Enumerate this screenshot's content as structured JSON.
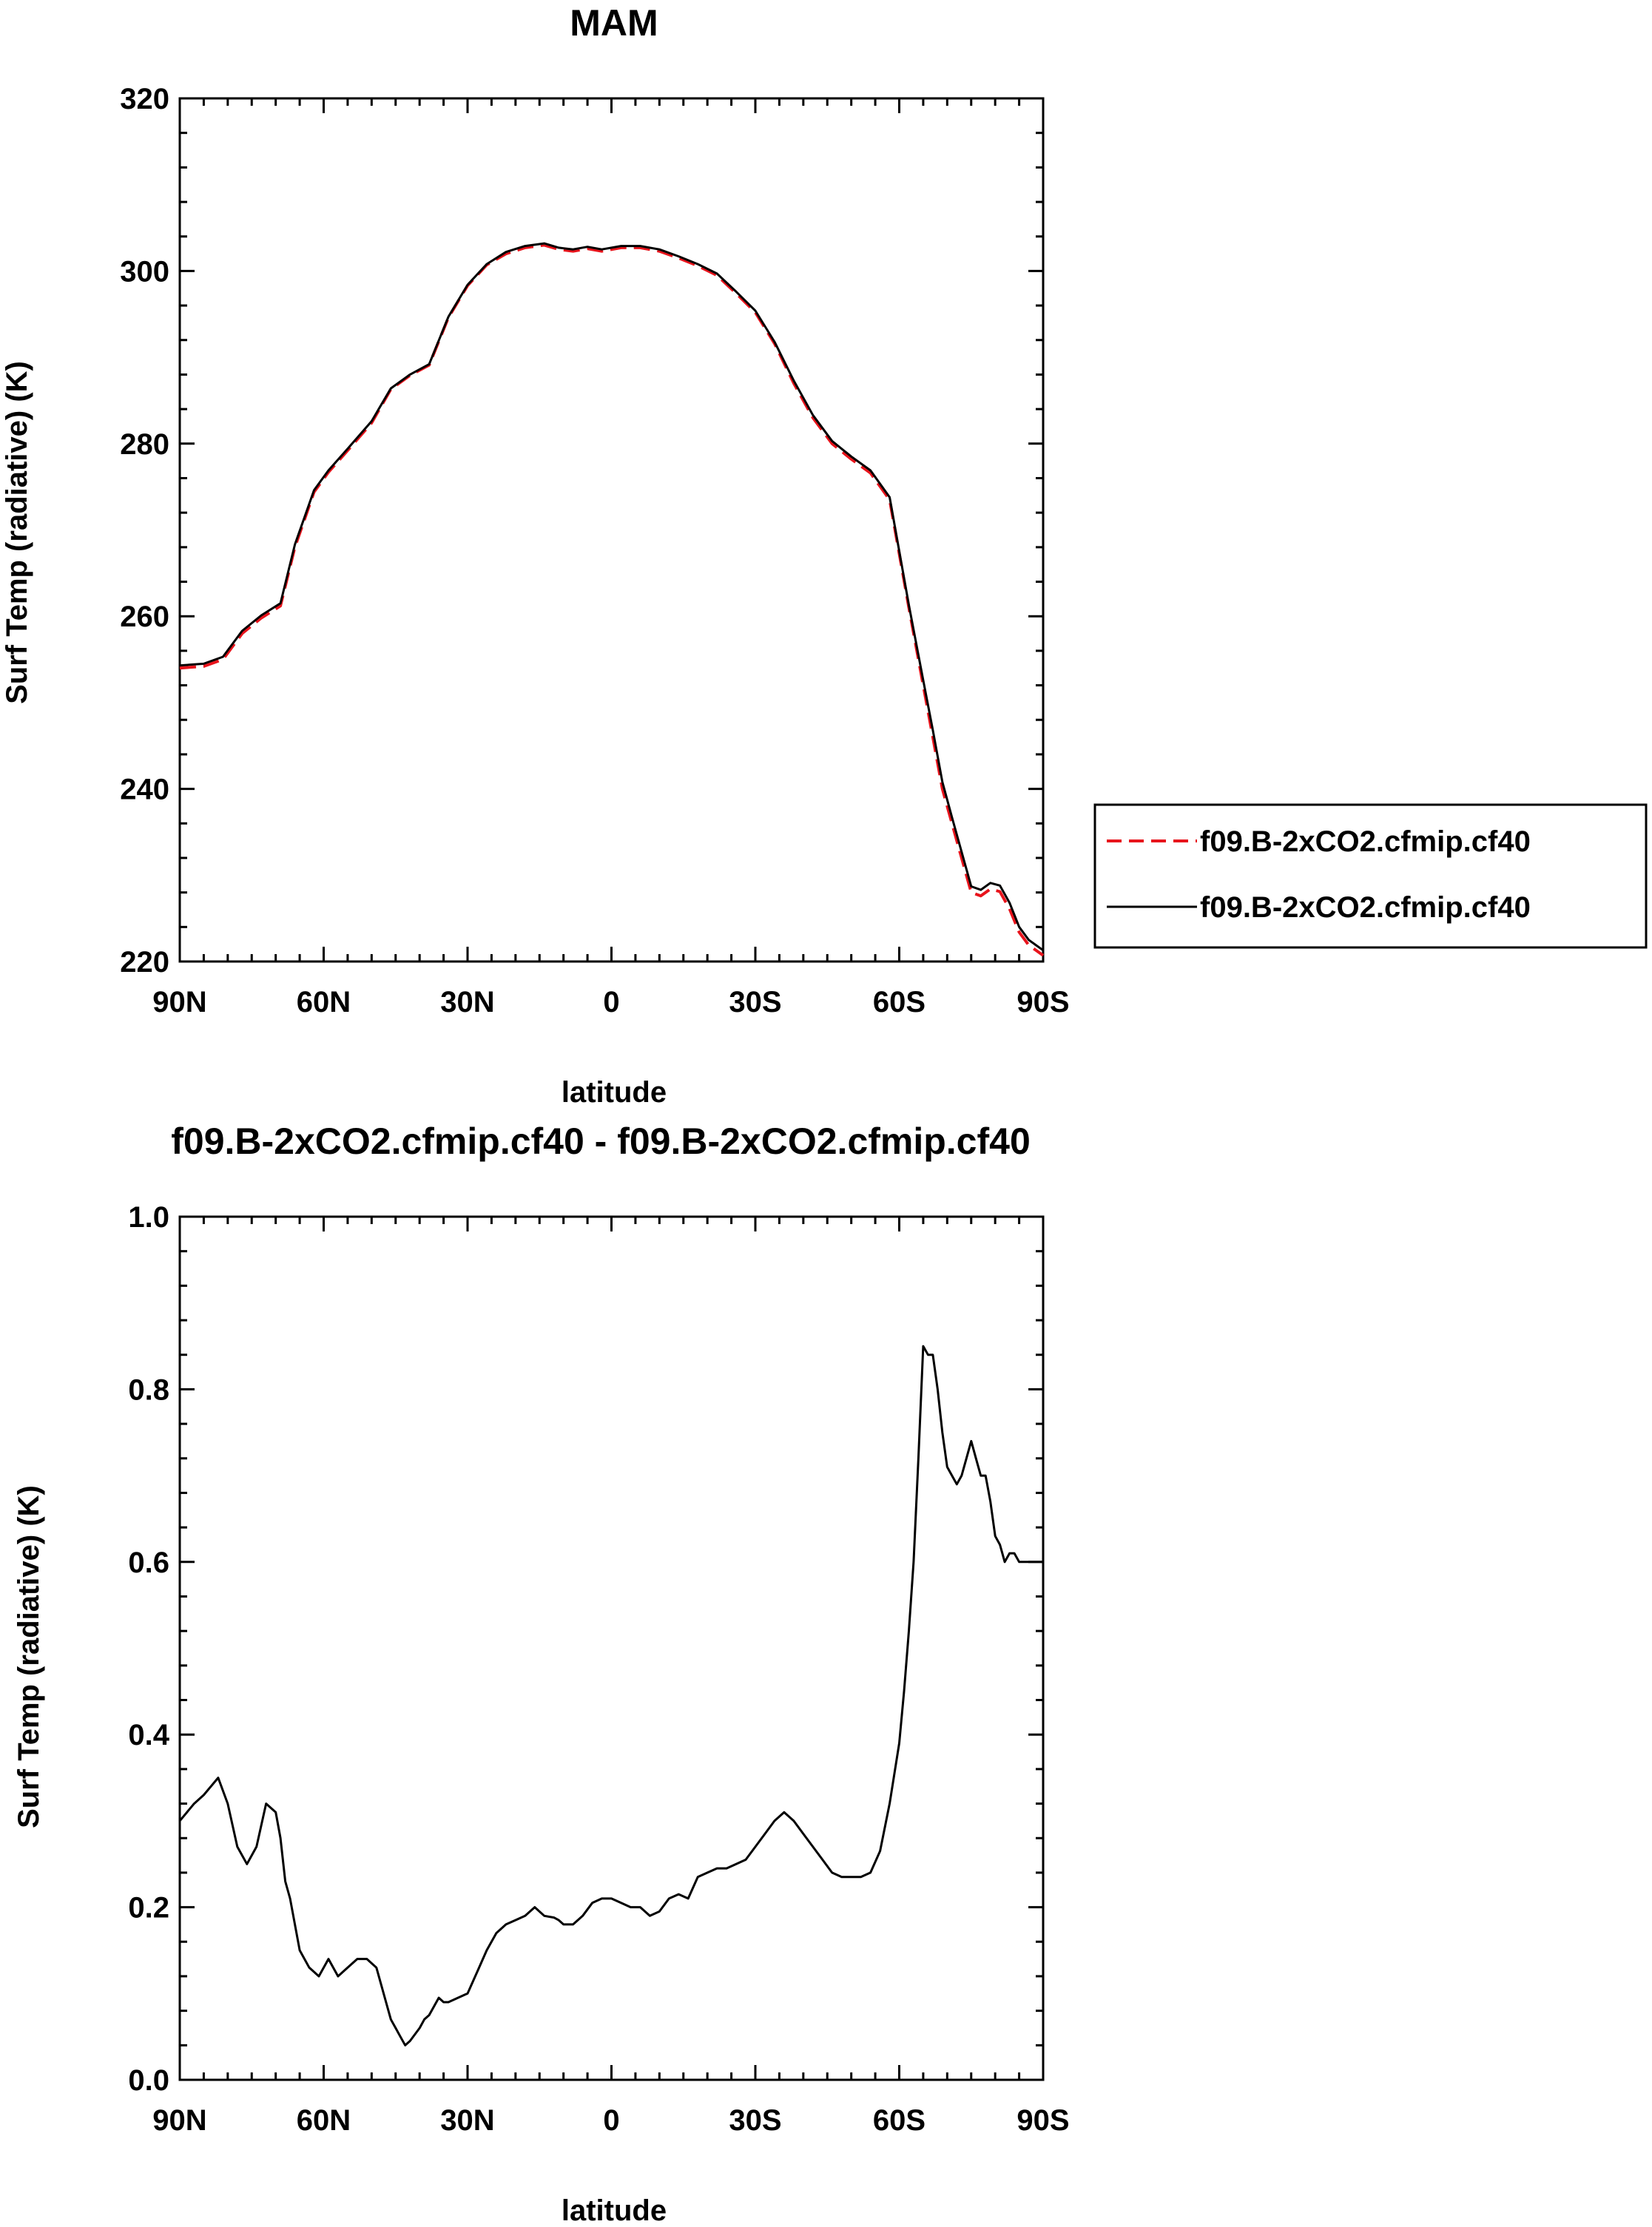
{
  "chart_data": [
    {
      "type": "line",
      "title": "MAM",
      "xlabel": "latitude",
      "ylabel": "Surf Temp (radiative) (K)",
      "xlim": [
        -90,
        90
      ],
      "ylim": [
        220,
        320
      ],
      "x_tick_values": [
        -90,
        -60,
        -30,
        0,
        30,
        60,
        90
      ],
      "x_tick_labels": [
        "90N",
        "60N",
        "30N",
        "0",
        "30S",
        "60S",
        "90S"
      ],
      "y_tick_values": [
        220,
        240,
        260,
        280,
        300,
        320
      ],
      "y_tick_labels": [
        "220",
        "240",
        "260",
        "280",
        "300",
        "320"
      ],
      "legend": {
        "position": "right",
        "entries": [
          "f09.B-2xCO2.cfmip.cf40",
          "f09.B-2xCO2.cfmip.cf40"
        ]
      },
      "series": [
        {
          "name": "f09.B-2xCO2.cfmip.cf40",
          "color": "#e8141c",
          "dash": "dashed",
          "x": [
            -90,
            -85,
            -81,
            -77,
            -73,
            -69,
            -66,
            -62,
            -59,
            -55,
            -50,
            -46,
            -42,
            -38,
            -34,
            -30,
            -26,
            -22,
            -18,
            -14,
            -11,
            -8,
            -5,
            -2,
            2,
            6,
            10,
            14,
            18,
            22,
            26,
            30,
            34,
            38,
            42,
            46,
            50,
            54,
            58,
            62,
            65,
            67,
            69,
            71,
            73,
            75,
            77,
            79,
            81,
            83,
            85,
            87,
            90
          ],
          "y": [
            254.0,
            254.2,
            255.0,
            258.0,
            259.8,
            261.2,
            268.0,
            274.4,
            276.7,
            279.2,
            282.4,
            286.3,
            287.9,
            289.1,
            294.6,
            298.3,
            300.7,
            302.0,
            302.7,
            303.0,
            302.5,
            302.3,
            302.6,
            302.3,
            302.7,
            302.7,
            302.3,
            301.5,
            300.6,
            299.5,
            297.4,
            295.2,
            291.6,
            287.0,
            283.0,
            280.0,
            278.2,
            276.6,
            273.5,
            261.0,
            252.0,
            246.0,
            240.0,
            236.0,
            232.0,
            228.0,
            227.6,
            228.4,
            228.1,
            226.1,
            223.4,
            221.9,
            220.7
          ]
        },
        {
          "name": "f09.B-2xCO2.cfmip.cf40",
          "color": "#000000",
          "dash": "solid",
          "x": [
            -90,
            -85,
            -81,
            -77,
            -73,
            -69,
            -66,
            -62,
            -59,
            -55,
            -50,
            -46,
            -42,
            -38,
            -34,
            -30,
            -26,
            -22,
            -18,
            -14,
            -11,
            -8,
            -5,
            -2,
            2,
            6,
            10,
            14,
            18,
            22,
            26,
            30,
            34,
            38,
            42,
            46,
            50,
            54,
            58,
            62,
            65,
            67,
            69,
            71,
            73,
            75,
            77,
            79,
            81,
            83,
            85,
            87,
            90
          ],
          "y": [
            254.3,
            254.5,
            255.3,
            258.3,
            260.1,
            261.5,
            268.3,
            274.6,
            276.9,
            279.4,
            282.6,
            286.4,
            288.0,
            289.2,
            294.7,
            298.4,
            300.8,
            302.2,
            302.9,
            303.2,
            302.7,
            302.5,
            302.8,
            302.5,
            302.9,
            302.9,
            302.5,
            301.7,
            300.8,
            299.7,
            297.6,
            295.4,
            291.8,
            287.3,
            283.3,
            280.3,
            278.5,
            276.9,
            273.8,
            261.3,
            252.6,
            246.8,
            240.8,
            236.7,
            232.7,
            228.7,
            228.3,
            229.1,
            228.8,
            226.8,
            224.0,
            222.5,
            221.3
          ]
        }
      ]
    },
    {
      "type": "line",
      "title": "f09.B-2xCO2.cfmip.cf40 - f09.B-2xCO2.cfmip.cf40",
      "xlabel": "latitude",
      "ylabel": "Surf Temp (radiative) (K)",
      "xlim": [
        -90,
        90
      ],
      "ylim": [
        0.0,
        1.0
      ],
      "x_tick_values": [
        -90,
        -60,
        -30,
        0,
        30,
        60,
        90
      ],
      "x_tick_labels": [
        "90N",
        "60N",
        "30N",
        "0",
        "30S",
        "60S",
        "90S"
      ],
      "y_tick_values": [
        0.0,
        0.2,
        0.4,
        0.6,
        0.8,
        1.0
      ],
      "y_tick_labels": [
        "0.0",
        "0.2",
        "0.4",
        "0.6",
        "0.8",
        "1.0"
      ],
      "series": [
        {
          "color": "#000000",
          "dash": "solid",
          "x": [
            -90,
            -87,
            -85,
            -82,
            -80,
            -78,
            -76,
            -74,
            -72,
            -70,
            -69,
            -68,
            -67,
            -65,
            -63,
            -61,
            -59,
            -57,
            -55,
            -53,
            -51,
            -49,
            -47,
            -46,
            -45,
            -44,
            -43,
            -42,
            -40,
            -39,
            -38,
            -36,
            -35,
            -34,
            -32,
            -30,
            -28,
            -26,
            -24,
            -22,
            -20,
            -18,
            -16,
            -14,
            -12,
            -11,
            -10,
            -8,
            -6,
            -4,
            -2,
            0,
            2,
            4,
            6,
            8,
            10,
            12,
            14,
            16,
            18,
            20,
            22,
            24,
            26,
            28,
            30,
            32,
            34,
            36,
            38,
            40,
            42,
            44,
            46,
            48,
            50,
            52,
            54,
            56,
            58,
            60,
            61,
            62,
            63,
            64,
            65,
            66,
            67,
            68,
            69,
            70,
            71,
            72,
            73,
            74,
            75,
            76,
            77,
            78,
            79,
            80,
            81,
            82,
            83,
            84,
            85,
            86,
            87,
            88,
            89,
            90
          ],
          "y": [
            0.3,
            0.32,
            0.33,
            0.35,
            0.32,
            0.27,
            0.25,
            0.27,
            0.32,
            0.31,
            0.28,
            0.23,
            0.21,
            0.15,
            0.13,
            0.12,
            0.14,
            0.12,
            0.13,
            0.14,
            0.14,
            0.13,
            0.09,
            0.07,
            0.06,
            0.05,
            0.04,
            0.045,
            0.06,
            0.07,
            0.075,
            0.095,
            0.09,
            0.09,
            0.095,
            0.1,
            0.125,
            0.15,
            0.17,
            0.18,
            0.185,
            0.19,
            0.2,
            0.19,
            0.188,
            0.185,
            0.18,
            0.18,
            0.19,
            0.205,
            0.21,
            0.21,
            0.205,
            0.2,
            0.2,
            0.19,
            0.195,
            0.21,
            0.215,
            0.21,
            0.235,
            0.24,
            0.245,
            0.245,
            0.25,
            0.255,
            0.27,
            0.285,
            0.3,
            0.31,
            0.3,
            0.285,
            0.27,
            0.255,
            0.24,
            0.235,
            0.235,
            0.235,
            0.24,
            0.265,
            0.32,
            0.39,
            0.45,
            0.52,
            0.6,
            0.72,
            0.85,
            0.84,
            0.84,
            0.8,
            0.75,
            0.71,
            0.7,
            0.69,
            0.7,
            0.72,
            0.74,
            0.72,
            0.7,
            0.7,
            0.67,
            0.63,
            0.62,
            0.6,
            0.61,
            0.61,
            0.6,
            0.6,
            0.6,
            0.6,
            0.6,
            0.6
          ]
        }
      ]
    }
  ]
}
